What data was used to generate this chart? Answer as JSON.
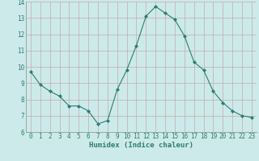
{
  "x": [
    0,
    1,
    2,
    3,
    4,
    5,
    6,
    7,
    8,
    9,
    10,
    11,
    12,
    13,
    14,
    15,
    16,
    17,
    18,
    19,
    20,
    21,
    22,
    23
  ],
  "y": [
    9.7,
    8.9,
    8.5,
    8.2,
    7.6,
    7.6,
    7.3,
    6.5,
    6.7,
    8.6,
    9.8,
    11.3,
    13.1,
    13.7,
    13.3,
    12.9,
    11.9,
    10.3,
    9.8,
    8.5,
    7.8,
    7.3,
    7.0,
    6.9
  ],
  "line_color": "#2E7D6E",
  "marker": "D",
  "marker_size": 2.0,
  "bg_color": "#cceaea",
  "grid_color_major": "#c8a8a8",
  "grid_color_minor": "#d8c0c0",
  "xlabel": "Humidex (Indice chaleur)",
  "ylim": [
    6,
    14
  ],
  "xlim": [
    -0.5,
    23.5
  ],
  "yticks": [
    6,
    7,
    8,
    9,
    10,
    11,
    12,
    13,
    14
  ],
  "xticks": [
    0,
    1,
    2,
    3,
    4,
    5,
    6,
    7,
    8,
    9,
    10,
    11,
    12,
    13,
    14,
    15,
    16,
    17,
    18,
    19,
    20,
    21,
    22,
    23
  ],
  "tick_color": "#2E7D6E",
  "label_color": "#2E7D6E",
  "font_size_tick": 5.5,
  "font_size_xlabel": 6.5,
  "linewidth": 0.8
}
